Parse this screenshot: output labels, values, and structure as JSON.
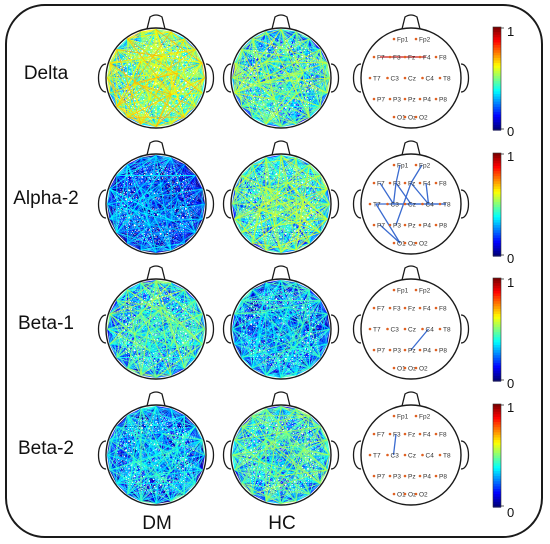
{
  "rows": [
    {
      "label": "Delta",
      "dm_mean": 0.45,
      "hc_mean": 0.34,
      "sig_edges": [
        [
          "F7",
          "F3"
        ],
        [
          "F3",
          "Fz"
        ],
        [
          "Fz",
          "F4"
        ]
      ]
    },
    {
      "label": "Alpha-2",
      "dm_mean": 0.14,
      "hc_mean": 0.36,
      "sig_edges": [
        [
          "Fp1",
          "F3"
        ],
        [
          "Fp2",
          "Fz"
        ],
        [
          "F7",
          "C3"
        ],
        [
          "F3",
          "C3"
        ],
        [
          "F3",
          "Cz"
        ],
        [
          "Fz",
          "C4"
        ],
        [
          "F4",
          "C4"
        ],
        [
          "T7",
          "T8"
        ],
        [
          "C3",
          "T8"
        ],
        [
          "Fz",
          "P3"
        ],
        [
          "T7",
          "O1"
        ],
        [
          "P7",
          "O1"
        ]
      ]
    },
    {
      "label": "Beta-1",
      "dm_mean": 0.3,
      "hc_mean": 0.22,
      "sig_edges": [
        [
          "C4",
          "Pz"
        ]
      ]
    },
    {
      "label": "Beta-2",
      "dm_mean": 0.21,
      "hc_mean": 0.3,
      "sig_edges": [
        [
          "F3",
          "C3"
        ]
      ]
    }
  ],
  "columns": [
    "DM",
    "HC"
  ],
  "electrodes": [
    "Fp1",
    "Fp2",
    "F7",
    "F3",
    "Fz",
    "F4",
    "F8",
    "T7",
    "C3",
    "Cz",
    "C4",
    "T8",
    "P7",
    "P3",
    "Pz",
    "P4",
    "P8",
    "O1",
    "Oz",
    "O2"
  ],
  "colorbar": {
    "min_label": "0",
    "max_label": "1"
  },
  "colors": {
    "sig_edge_delta": "#cc2222",
    "sig_edge": "#3a6bd0",
    "electrode_dot": "#e06020",
    "head_outline": "#1a1a1a"
  }
}
